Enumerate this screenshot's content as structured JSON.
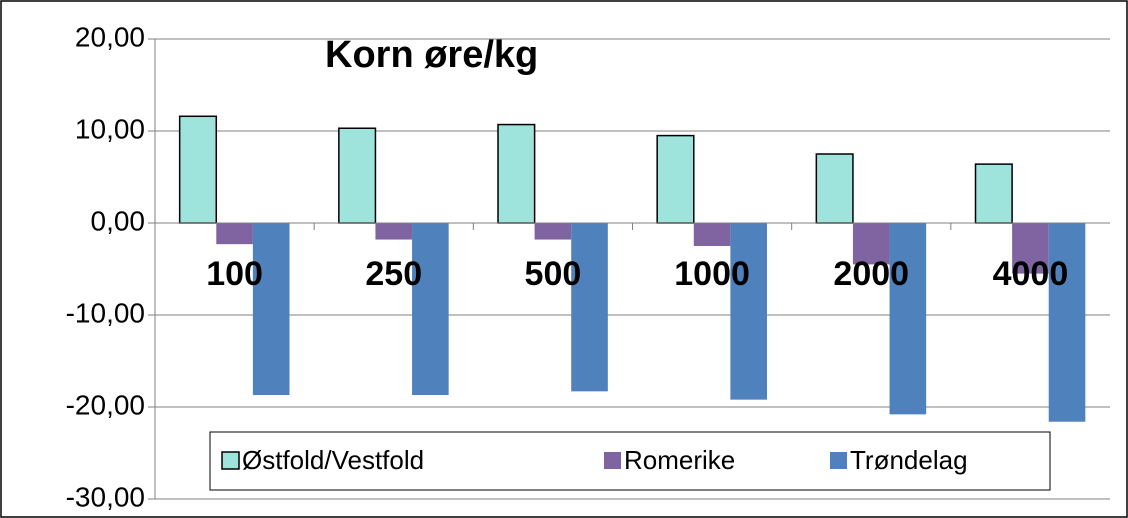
{
  "chart_data": {
    "type": "bar",
    "title": "Korn øre/kg",
    "categories": [
      "100",
      "250",
      "500",
      "1000",
      "2000",
      "4000"
    ],
    "series": [
      {
        "name": "Østfold/Vestfold",
        "color": "#9ee3dc",
        "values": [
          11.6,
          10.3,
          10.7,
          9.5,
          7.5,
          6.4
        ]
      },
      {
        "name": "Romerike",
        "color": "#8064a2",
        "values": [
          -2.3,
          -1.8,
          -1.8,
          -2.5,
          -4.5,
          -5.5
        ]
      },
      {
        "name": "Trøndelag",
        "color": "#4f81bd",
        "values": [
          -18.7,
          -18.7,
          -18.3,
          -19.2,
          -20.8,
          -21.6
        ]
      }
    ],
    "ylim": [
      -30,
      20
    ],
    "yticks": [
      {
        "value": -30,
        "label": "-30,00"
      },
      {
        "value": -20,
        "label": "-20,00"
      },
      {
        "value": -10,
        "label": "-10,00"
      },
      {
        "value": 0,
        "label": "0,00"
      },
      {
        "value": 10,
        "label": "10,00"
      },
      {
        "value": 20,
        "label": "20,00"
      }
    ],
    "grid": true
  }
}
